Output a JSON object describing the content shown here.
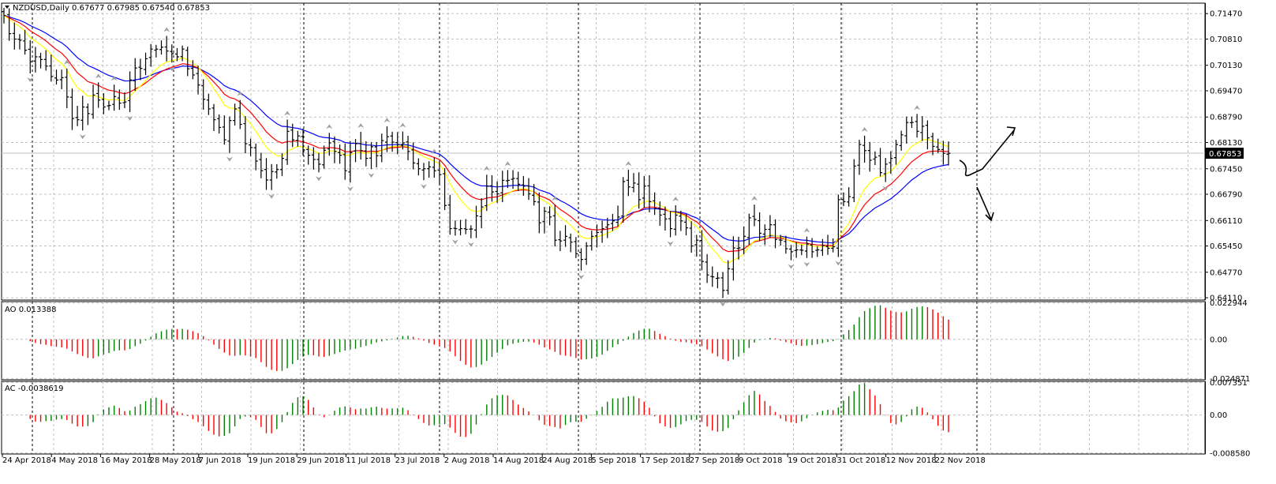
{
  "main_title": "NZDUSD,Daily  0.67677 0.67985 0.67540 0.67853",
  "ao_title": "AO 0.013388",
  "ac_title": "AC -0.0038619",
  "current_price_label": "0.67853",
  "colors": {
    "bars": "#000000",
    "ma_fast": "#ffff00",
    "ma_mid": "#ff0000",
    "ma_slow": "#0000ff",
    "up": "#008000",
    "down": "#ff0000",
    "fractal": "#a0a0a0",
    "grid": "#c0c0c0"
  },
  "chart_data": [
    {
      "type": "line",
      "title": "NZDUSD,Daily  0.67677 0.67985 0.67540 0.67853",
      "x_tick_labels": [
        "24 Apr 2018",
        "4 May 2018",
        "16 May 2018",
        "28 May 2018",
        "7 Jun 2018",
        "19 Jun 2018",
        "29 Jun 2018",
        "11 Jul 2018",
        "23 Jul 2018",
        "2 Aug 2018",
        "14 Aug 2018",
        "24 Aug 2018",
        "5 Sep 2018",
        "17 Sep 2018",
        "27 Sep 2018",
        "9 Oct 2018",
        "19 Oct 2018",
        "31 Oct 2018",
        "12 Nov 2018",
        "22 Nov 2018"
      ],
      "y_tick_labels": [
        "0.71470",
        "0.70810",
        "0.70130",
        "0.69470",
        "0.68790",
        "0.68130",
        "0.67450",
        "0.66790",
        "0.66110",
        "0.65450",
        "0.64770",
        "0.64110"
      ],
      "ylim": [
        0.6405,
        0.7174
      ],
      "current_price": 0.67853,
      "series": [
        {
          "kind": "ohlc",
          "close": [
            0.7142,
            0.7095,
            0.7081,
            0.7078,
            0.7052,
            0.7022,
            0.7035,
            0.7028,
            0.7011,
            0.6984,
            0.6975,
            0.6981,
            0.6931,
            0.6875,
            0.6872,
            0.6905,
            0.6888,
            0.6936,
            0.6923,
            0.6905,
            0.6909,
            0.6932,
            0.6915,
            0.6918,
            0.6975,
            0.7006,
            0.7005,
            0.703,
            0.7055,
            0.7055,
            0.706,
            0.705,
            0.7043,
            0.7035,
            0.7055,
            0.7004,
            0.6988,
            0.6962,
            0.6925,
            0.69,
            0.6872,
            0.6852,
            0.682,
            0.687,
            0.69,
            0.686,
            0.681,
            0.68,
            0.6765,
            0.674,
            0.6716,
            0.6738,
            0.6743,
            0.6772,
            0.6842,
            0.682,
            0.683,
            0.6794,
            0.678,
            0.6769,
            0.6757,
            0.6793,
            0.6812,
            0.679,
            0.678,
            0.674,
            0.6787,
            0.681,
            0.6792,
            0.6772,
            0.6802,
            0.6779,
            0.6818,
            0.6828,
            0.6814,
            0.6808,
            0.6812,
            0.679,
            0.676,
            0.6745,
            0.6745,
            0.675,
            0.674,
            0.673,
            0.665,
            0.659,
            0.659,
            0.659,
            0.6588,
            0.6589,
            0.6623,
            0.6646,
            0.67,
            0.6685,
            0.668,
            0.6715,
            0.6715,
            0.672,
            0.6705,
            0.67,
            0.668,
            0.666,
            0.6605,
            0.6635,
            0.662,
            0.656,
            0.6558,
            0.657,
            0.6555,
            0.6525,
            0.651,
            0.6545,
            0.657,
            0.658,
            0.659,
            0.66,
            0.661,
            0.662,
            0.6712,
            0.6698,
            0.6708,
            0.6665,
            0.67,
            0.666,
            0.6642,
            0.6625,
            0.6615,
            0.659,
            0.6625,
            0.661,
            0.6592,
            0.6545,
            0.656,
            0.6505,
            0.647,
            0.6465,
            0.6462,
            0.643,
            0.6486,
            0.654,
            0.654,
            0.657,
            0.6618,
            0.6614,
            0.6578,
            0.6588,
            0.66,
            0.6562,
            0.656,
            0.6538,
            0.653,
            0.6535,
            0.6534,
            0.655,
            0.653,
            0.6535,
            0.6546,
            0.6539,
            0.6543,
            0.6665,
            0.666,
            0.6673,
            0.6752,
            0.6808,
            0.6792,
            0.6767,
            0.6775,
            0.6735,
            0.6757,
            0.6772,
            0.6808,
            0.6833,
            0.6865,
            0.6865,
            0.6842,
            0.6855,
            0.6825,
            0.6803,
            0.6795,
            0.6785,
            0.6785
          ]
        },
        {
          "kind": "ma",
          "name": "",
          "color": "#ffff00"
        },
        {
          "kind": "ma",
          "name": "",
          "color": "#ff0000"
        },
        {
          "kind": "ma",
          "name": "",
          "color": "#0000ff"
        }
      ],
      "annotations": [
        "arrow-up",
        "arrow-down",
        "check-mark"
      ]
    },
    {
      "type": "bar",
      "title": "AO 0.013388",
      "y_tick_labels": [
        "0.022944",
        "0.00",
        "-0.024871"
      ],
      "ylim": [
        -0.0255,
        0.0238
      ],
      "x_tick_labels": [],
      "bar_colors": [
        "up",
        "down"
      ]
    },
    {
      "type": "bar",
      "title": "AC -0.0038619",
      "y_tick_labels": [
        "0.007351",
        "0.00",
        "-0.008580"
      ],
      "ylim": [
        -0.0088,
        0.0076
      ],
      "x_tick_labels": [],
      "bar_colors": [
        "up",
        "down"
      ]
    }
  ]
}
